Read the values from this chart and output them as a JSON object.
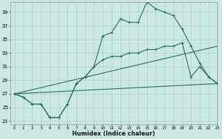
{
  "xlabel": "Humidex (Indice chaleur)",
  "background_color": "#cce8e4",
  "grid_color": "#aacfcb",
  "line_color": "#1a6b5a",
  "line1": {
    "x": [
      0,
      1,
      2,
      3,
      4,
      5,
      6,
      7,
      8,
      9,
      10,
      11,
      12,
      13,
      14,
      15,
      16,
      17,
      18,
      19,
      20,
      21,
      22,
      23
    ],
    "y": [
      27,
      26.5,
      25.5,
      25.5,
      23.5,
      23.5,
      25.5,
      28.5,
      29.5,
      31,
      35.5,
      36,
      38,
      37.5,
      37.5,
      40.5,
      39.5,
      39,
      38.5,
      36.5,
      34,
      31.5,
      29.5,
      28.5
    ]
  },
  "line2": {
    "x": [
      0,
      1,
      2,
      3,
      4,
      5,
      6,
      7,
      8,
      9,
      10,
      11,
      12,
      13,
      14,
      15,
      16,
      17,
      18,
      19,
      20,
      21,
      22,
      23
    ],
    "y": [
      27,
      26.5,
      25.5,
      25.5,
      23.5,
      23.5,
      25.5,
      28.5,
      29.5,
      31,
      32,
      32.5,
      32.5,
      33,
      33,
      33.5,
      33.5,
      34,
      34,
      34.5,
      29.5,
      31,
      29.5,
      28.5
    ]
  },
  "straight1": {
    "x": [
      0,
      23
    ],
    "y": [
      27,
      28.5
    ]
  },
  "straight2": {
    "x": [
      0,
      23
    ],
    "y": [
      27,
      34
    ]
  },
  "ylim": [
    22.5,
    40.5
  ],
  "xlim": [
    -0.5,
    23
  ],
  "yticks": [
    23,
    25,
    27,
    29,
    31,
    33,
    35,
    37,
    39
  ],
  "xticks": [
    0,
    1,
    2,
    3,
    4,
    5,
    6,
    7,
    8,
    9,
    10,
    11,
    12,
    13,
    14,
    15,
    16,
    17,
    18,
    19,
    20,
    21,
    22,
    23
  ],
  "xtick_labels": [
    "0",
    "1",
    "2",
    "3",
    "4",
    "5",
    "6",
    "7",
    "8",
    "9",
    "10",
    "11",
    "12",
    "13",
    "14",
    "15",
    "16",
    "17",
    "18",
    "19",
    "20",
    "21",
    "22",
    "23"
  ]
}
